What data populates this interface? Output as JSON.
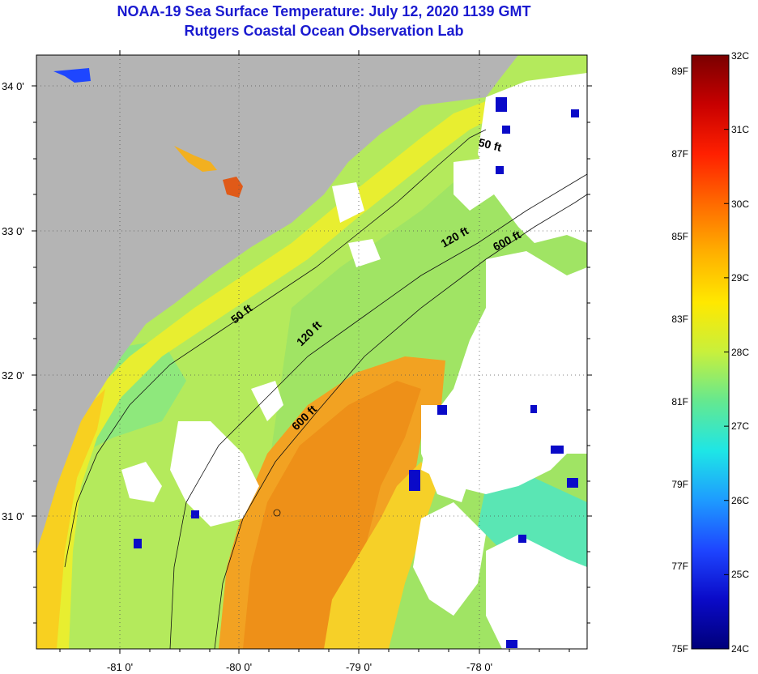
{
  "title": {
    "line1": "NOAA-19 Sea Surface Temperature:  July 12, 2020 1139 GMT",
    "line2": "Rutgers Coastal Ocean Observation Lab"
  },
  "axes": {
    "lat_labels": [
      "34 0'",
      "33 0'",
      "32 0'",
      "31 0'"
    ],
    "lon_labels": [
      "-81 0'",
      "-80 0'",
      "-79 0'",
      "-78 0'"
    ]
  },
  "contours": {
    "ft50": "50 ft",
    "ft120": "120 ft",
    "ft600": "600 ft"
  },
  "colorbar": {
    "celsius": [
      "32C",
      "31C",
      "30C",
      "29C",
      "28C",
      "27C",
      "26C",
      "25C",
      "24C"
    ],
    "fahrenheit": [
      "89F",
      "87F",
      "85F",
      "83F",
      "81F",
      "79F",
      "77F",
      "75F"
    ],
    "colors": [
      "#7a0000",
      "#c80000",
      "#ff2000",
      "#ff6a00",
      "#ffb000",
      "#ffe800",
      "#c8f03c",
      "#64e890",
      "#1ee6e6",
      "#1e9bff",
      "#1e46ff",
      "#0a0ac8",
      "#00007a"
    ]
  },
  "colors": {
    "land": "#b4b4b4",
    "cloud": "#ffffff",
    "shelf": "#a8e660",
    "inshore": "#e8ee30",
    "warm": "#f2a020",
    "warm_core": "#ee8c18",
    "title": "#1a1ad0"
  }
}
